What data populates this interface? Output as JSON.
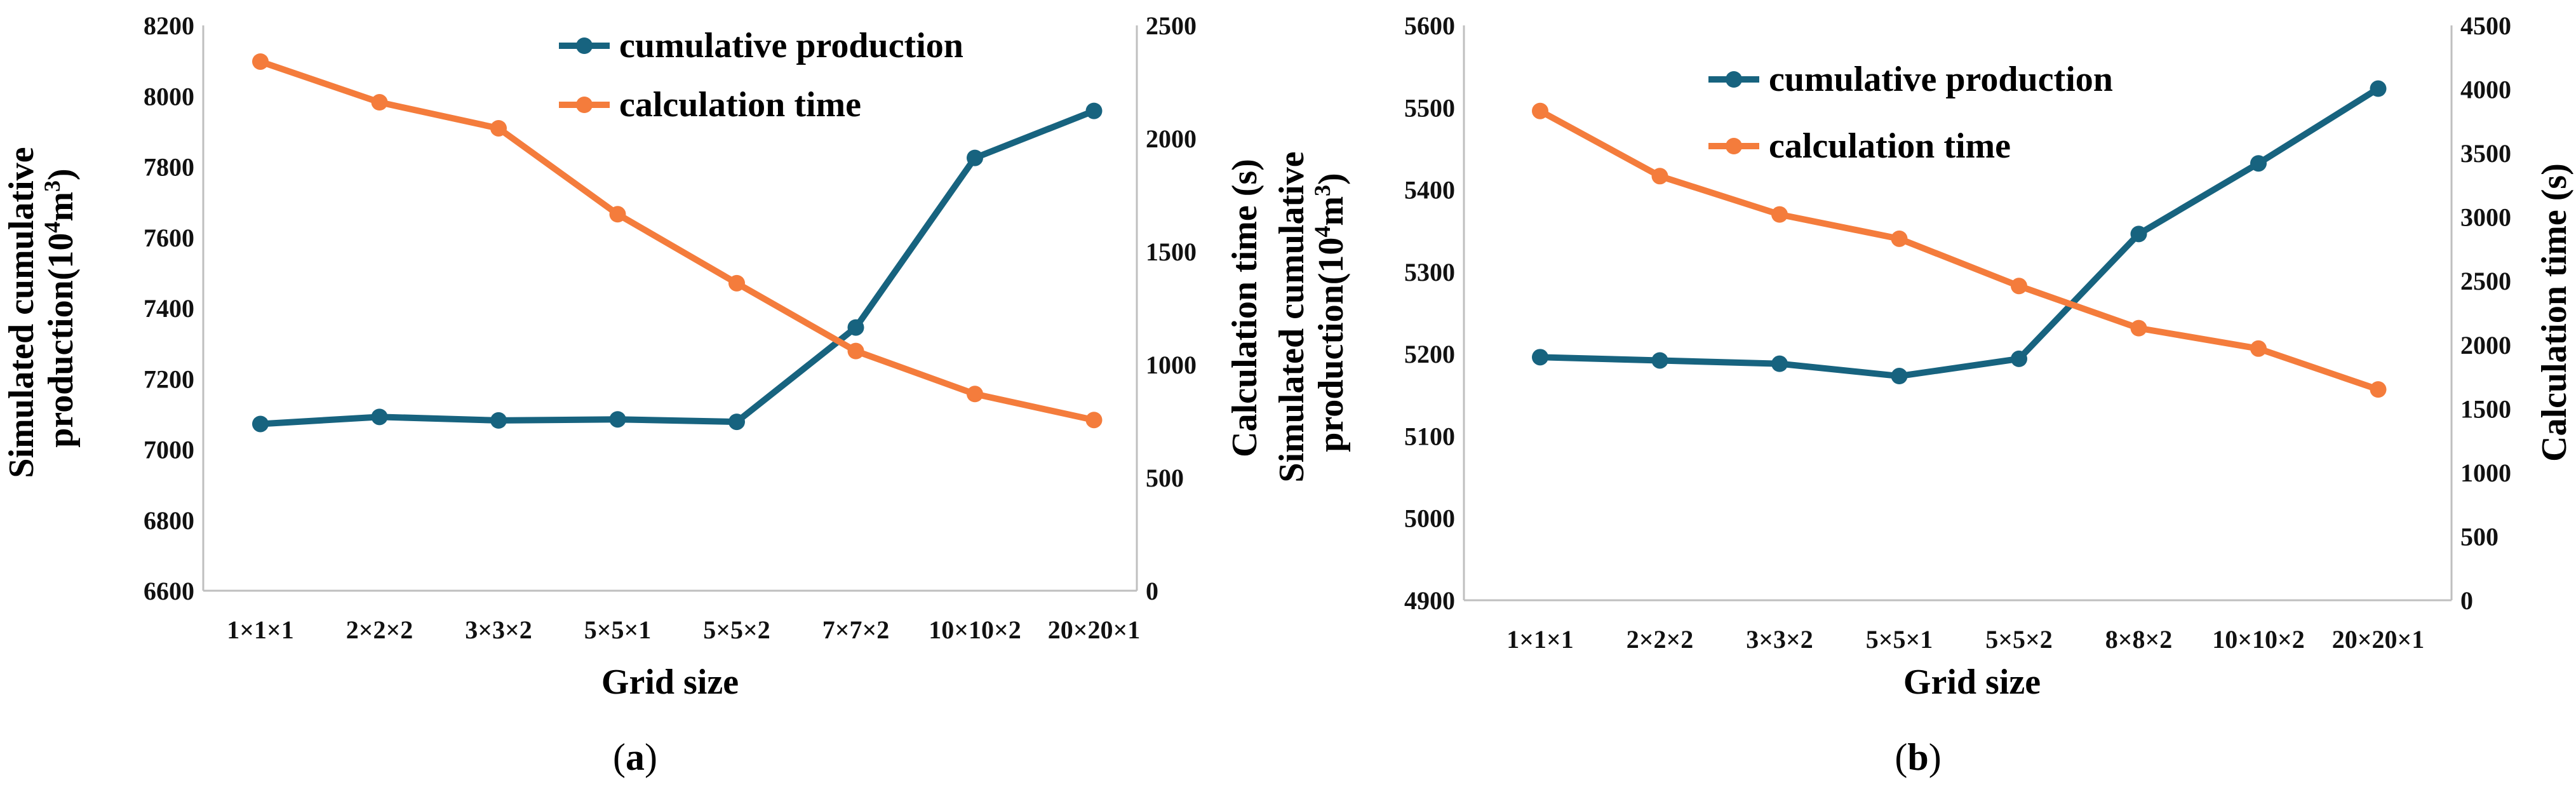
{
  "chart_data": [
    {
      "type": "line",
      "panel_label": "a",
      "categories": [
        "1×1×1",
        "2×2×2",
        "3×3×2",
        "5×5×1",
        "5×5×2",
        "7×7×2",
        "10×10×2",
        "20×20×1"
      ],
      "xlabel": "Grid size",
      "ylabel": "Simulated cumulative production(10⁴m³)",
      "ylabel_right": "Calculation time (s)",
      "ylim": [
        6600,
        8200
      ],
      "yticks": [
        "6600",
        "6800",
        "7000",
        "7200",
        "7400",
        "7600",
        "7800",
        "8000",
        "8200"
      ],
      "ylim_right": [
        0,
        2500
      ],
      "yticks_right": [
        "0",
        "500",
        "1000",
        "1500",
        "2000",
        "2500"
      ],
      "grid": false,
      "legend_position": "top-right",
      "series": [
        {
          "name": "cumulative production",
          "axis": "left",
          "color": "#17637f",
          "values": [
            7072,
            7092,
            7082,
            7085,
            7078,
            7345,
            7825,
            7958
          ]
        },
        {
          "name": "calculation time",
          "axis": "right",
          "color": "#f47c3c",
          "values": [
            2340,
            2160,
            2045,
            1665,
            1360,
            1060,
            870,
            755
          ]
        }
      ]
    },
    {
      "type": "line",
      "panel_label": "b",
      "categories": [
        "1×1×1",
        "2×2×2",
        "3×3×2",
        "5×5×1",
        "5×5×2",
        "8×8×2",
        "10×10×2",
        "20×20×1"
      ],
      "xlabel": "Grid size",
      "ylabel": "Simulated cumulative production(10⁴m³)",
      "ylabel_right": "Calculation time (s)",
      "ylim": [
        4900,
        5600
      ],
      "yticks": [
        "4900",
        "5000",
        "5100",
        "5200",
        "5300",
        "5400",
        "5500",
        "5600"
      ],
      "ylim_right": [
        0,
        4500
      ],
      "yticks_right": [
        "0",
        "500",
        "1000",
        "1500",
        "2000",
        "2500",
        "3000",
        "3500",
        "4000",
        "4500"
      ],
      "grid": false,
      "legend_position": "top-right",
      "series": [
        {
          "name": "cumulative  production",
          "axis": "left",
          "color": "#17637f",
          "values": [
            5196,
            5192,
            5188,
            5173,
            5194,
            5346,
            5432,
            5523
          ]
        },
        {
          "name": "calculation time",
          "axis": "right",
          "color": "#f47c3c",
          "values": [
            3830,
            3320,
            3020,
            2830,
            2460,
            2130,
            1970,
            1650
          ]
        }
      ]
    }
  ]
}
